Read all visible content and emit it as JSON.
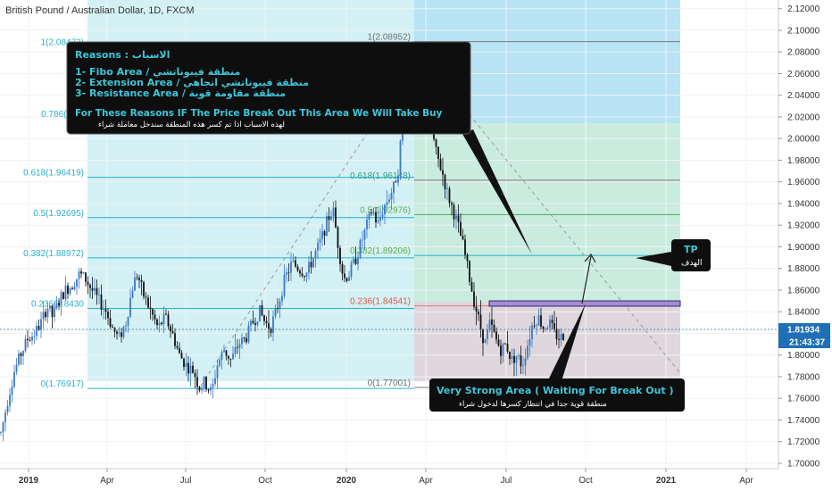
{
  "chart_data": {
    "type": "candlestick",
    "title": "British Pound / Australian Dollar, 1D, FXCM",
    "y_ticks": [
      "2.12000",
      "2.10000",
      "2.08000",
      "2.06000",
      "2.04000",
      "2.02000",
      "2.00000",
      "1.98000",
      "1.96000",
      "1.94000",
      "1.92000",
      "1.90000",
      "1.88000",
      "1.86000",
      "1.84000",
      "1.82000",
      "1.80000",
      "1.78000",
      "1.76000",
      "1.74000",
      "1.72000",
      "1.70000"
    ],
    "ylim": [
      1.695,
      2.128
    ],
    "x_ticks": [
      "2019",
      "Apr",
      "Jul",
      "Oct",
      "2020",
      "Apr",
      "Jul",
      "Oct",
      "2021",
      "Apr"
    ],
    "last_price": "1.81934",
    "countdown": "21:43:37",
    "fib_left": {
      "levels": [
        {
          "label": "1(2.08473)",
          "value": 2.08473
        },
        {
          "label": "0.786(2.01",
          "value": 2.0185
        },
        {
          "label": "0.618(1.96419)",
          "value": 1.96419
        },
        {
          "label": "0.5(1.92695)",
          "value": 1.92695
        },
        {
          "label": "0.382(1.88972)",
          "value": 1.88972
        },
        {
          "label": "0.236(1.8430",
          "value": 1.843
        },
        {
          "label": "0(1.76917)",
          "value": 1.76917
        }
      ]
    },
    "fib_right": {
      "levels": [
        {
          "label": "1(2.08952)",
          "value": 2.08952
        },
        {
          "label": "0.618(1.96148)",
          "value": 1.96148
        },
        {
          "label": "0.5(1.92976)",
          "value": 1.92976
        },
        {
          "label": "0.382(1.89206)",
          "value": 1.89206
        },
        {
          "label": "0.236(1.84541)",
          "value": 1.84541
        },
        {
          "label": "0(1.77001)",
          "value": 1.77001
        }
      ]
    },
    "price_path": [
      [
        0,
        1.728
      ],
      [
        8,
        1.76
      ],
      [
        15,
        1.785
      ],
      [
        22,
        1.8
      ],
      [
        30,
        1.815
      ],
      [
        38,
        1.82
      ],
      [
        45,
        1.83
      ],
      [
        52,
        1.845
      ],
      [
        58,
        1.835
      ],
      [
        65,
        1.85
      ],
      [
        72,
        1.86
      ],
      [
        80,
        1.865
      ],
      [
        88,
        1.875
      ],
      [
        95,
        1.87
      ],
      [
        102,
        1.86
      ],
      [
        110,
        1.85
      ],
      [
        118,
        1.84
      ],
      [
        125,
        1.825
      ],
      [
        132,
        1.815
      ],
      [
        140,
        1.83
      ],
      [
        148,
        1.865
      ],
      [
        153,
        1.875
      ],
      [
        160,
        1.855
      ],
      [
        168,
        1.84
      ],
      [
        176,
        1.825
      ],
      [
        184,
        1.835
      ],
      [
        192,
        1.82
      ],
      [
        200,
        1.8
      ],
      [
        208,
        1.79
      ],
      [
        216,
        1.785
      ],
      [
        222,
        1.77
      ],
      [
        228,
        1.775
      ],
      [
        236,
        1.765
      ],
      [
        242,
        1.79
      ],
      [
        250,
        1.805
      ],
      [
        258,
        1.795
      ],
      [
        266,
        1.81
      ],
      [
        274,
        1.815
      ],
      [
        282,
        1.83
      ],
      [
        290,
        1.84
      ],
      [
        296,
        1.83
      ],
      [
        302,
        1.825
      ],
      [
        310,
        1.845
      ],
      [
        318,
        1.87
      ],
      [
        326,
        1.885
      ],
      [
        334,
        1.88
      ],
      [
        342,
        1.875
      ],
      [
        350,
        1.89
      ],
      [
        358,
        1.905
      ],
      [
        366,
        1.925
      ],
      [
        372,
        1.935
      ],
      [
        378,
        1.9
      ],
      [
        384,
        1.87
      ],
      [
        390,
        1.875
      ],
      [
        398,
        1.89
      ],
      [
        404,
        1.905
      ],
      [
        410,
        1.92
      ],
      [
        416,
        1.935
      ],
      [
        422,
        1.92
      ],
      [
        428,
        1.935
      ],
      [
        434,
        1.945
      ],
      [
        440,
        1.955
      ],
      [
        446,
        1.975
      ],
      [
        452,
        2.055
      ],
      [
        458,
        2.02
      ],
      [
        464,
        2.05
      ],
      [
        470,
        2.045
      ],
      [
        476,
        2.06
      ],
      [
        482,
        2.01
      ],
      [
        488,
        1.985
      ],
      [
        494,
        1.97
      ],
      [
        500,
        1.95
      ],
      [
        506,
        1.935
      ],
      [
        512,
        1.92
      ],
      [
        518,
        1.9
      ],
      [
        524,
        1.875
      ],
      [
        530,
        1.85
      ],
      [
        536,
        1.83
      ],
      [
        542,
        1.81
      ],
      [
        548,
        1.83
      ],
      [
        554,
        1.815
      ],
      [
        560,
        1.805
      ],
      [
        566,
        1.81
      ],
      [
        572,
        1.795
      ],
      [
        578,
        1.8
      ],
      [
        584,
        1.79
      ],
      [
        590,
        1.81
      ],
      [
        596,
        1.83
      ],
      [
        602,
        1.835
      ],
      [
        608,
        1.825
      ],
      [
        614,
        1.83
      ],
      [
        620,
        1.82
      ],
      [
        626,
        1.815
      ],
      [
        632,
        1.82
      ]
    ],
    "annotations": {
      "reasons_title": "Reasons : الاسباب",
      "reason_1": "1- Fibo Area / منطقة فيبوناتشي",
      "reason_2": "2- Extension Area / منطقة فيبوناتشي اتجاهي",
      "reason_3": "3- Resistance Area / منطقة مقاومة قوية",
      "conclusion_en": "For These Reasons IF The Price Break Out This Area We Will Take Buy",
      "conclusion_ar": "لهذه الاسباب اذا تم كسر هذه المنطقة سندخل معاملة شراء",
      "tp_en": "TP",
      "tp_ar": "الهدف",
      "strong_en": "Very Strong Area ( Waiting For Break Out )",
      "strong_ar": "منطقة قوية جدا في انتظار كسرها لدخول شراء"
    }
  }
}
